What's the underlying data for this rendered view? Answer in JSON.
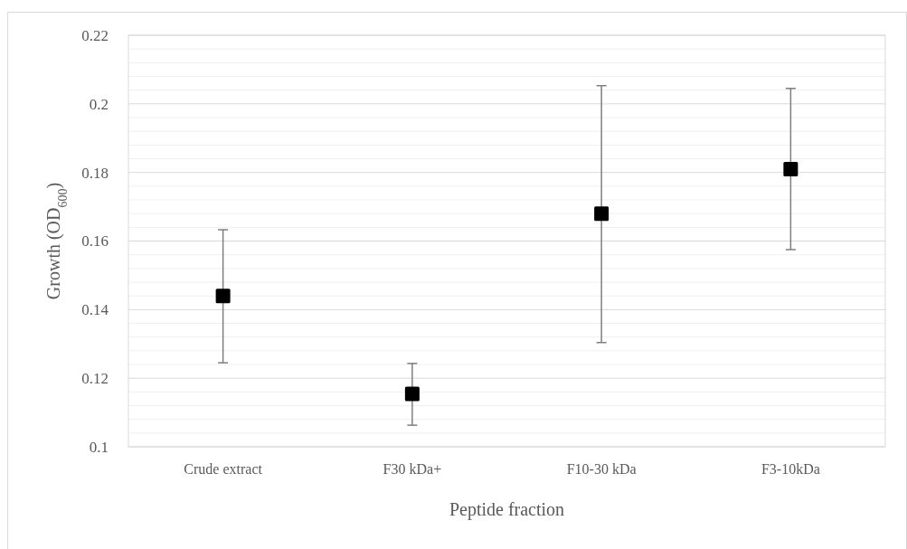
{
  "chart_data": {
    "type": "scatter",
    "xlabel": "Peptide fraction",
    "ylabel": "Growth (OD$_{600}$)",
    "categories": [
      "Crude extract",
      "F30 kDa+",
      "F10-30 kDa",
      "F3-10kDa"
    ],
    "series": [
      {
        "color": "#000000",
        "values": [
          0.144,
          0.1154,
          0.168,
          0.181
        ],
        "errors": [
          [
            0.1245,
            0.1633
          ],
          [
            0.1063,
            0.1243
          ],
          [
            0.1304,
            0.2053
          ],
          [
            0.1575,
            0.2045
          ]
        ]
      }
    ],
    "ylim": [
      0.1,
      0.22
    ],
    "yticks": [
      0.1,
      {
        "value": 0.104,
        "label": null
      },
      {
        "value": 0.108,
        "label": null
      },
      {
        "value": 0.112,
        "label": null
      },
      {
        "value": 0.116,
        "label": null
      },
      0.12,
      {
        "value": 0.124,
        "label": null
      },
      {
        "value": 0.128,
        "label": null
      },
      {
        "value": 0.132,
        "label": null
      },
      {
        "value": 0.136,
        "label": null
      },
      0.14,
      {
        "value": 0.144,
        "label": null
      },
      {
        "value": 0.148,
        "label": null
      },
      {
        "value": 0.152,
        "label": null
      },
      {
        "value": 0.156,
        "label": null
      },
      0.16,
      {
        "value": 0.164,
        "label": null
      },
      {
        "value": 0.168,
        "label": null
      },
      {
        "value": 0.172,
        "label": null
      },
      {
        "value": 0.176,
        "label": null
      },
      0.18,
      {
        "value": 0.184,
        "label": null
      },
      {
        "value": 0.188,
        "label": null
      },
      {
        "value": 0.192,
        "label": null
      },
      {
        "value": 0.196,
        "label": null
      },
      0.2,
      {
        "value": 0.204,
        "label": null
      },
      {
        "value": 0.208,
        "label": null
      },
      {
        "value": 0.212,
        "label": null
      },
      {
        "value": 0.216,
        "label": null
      },
      0.22
    ],
    "grid": "y",
    "marker": "square"
  }
}
